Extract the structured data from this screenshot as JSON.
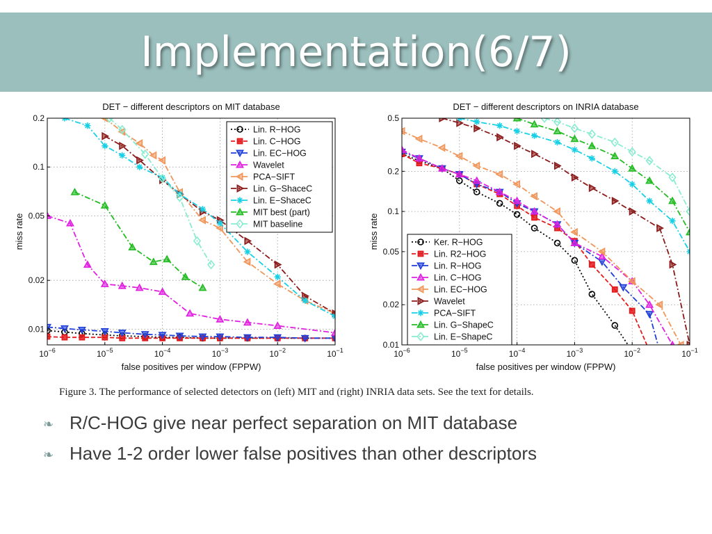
{
  "title": "Implementation(6/7)",
  "caption": "Figure 3. The performance of selected detectors on (left) MIT and (right) INRIA data sets. See the text for details.",
  "bullets": [
    "R/C-HOG give near perfect separation on MIT database",
    "Have 1-2 order lower false positives than other descriptors"
  ],
  "bullet_icon": "curl-bullet-icon",
  "colors": {
    "title_bar": "#9bbfbd",
    "title_text": "#ffffff",
    "bullet_text": "#3b3b3b"
  },
  "chart_data": [
    {
      "type": "line",
      "title": "DET − different descriptors on MIT database",
      "xlabel": "false positives per window (FPPW)",
      "ylabel": "miss rate",
      "xscale": "log",
      "yscale": "log",
      "xlim": [
        1e-06,
        0.1
      ],
      "ylim": [
        0.008,
        0.2
      ],
      "xticks": [
        1e-06,
        1e-05,
        0.0001,
        0.001,
        0.01,
        0.1
      ],
      "xtick_labels": [
        [
          "10",
          "−6"
        ],
        [
          "10",
          "−5"
        ],
        [
          "10",
          "−4"
        ],
        [
          "10",
          "−3"
        ],
        [
          "10",
          "−2"
        ],
        [
          "10",
          "−1"
        ]
      ],
      "yticks": [
        0.01,
        0.02,
        0.05,
        0.1,
        0.2
      ],
      "ytick_labels": [
        "0.01",
        "0.02",
        "0.05",
        "0.1",
        "0.2"
      ],
      "grid": true,
      "legend_position": "top-right",
      "series": [
        {
          "name": "Lin. R−HOG",
          "color": "#000000",
          "marker": "circle",
          "dash": "2,3",
          "x": [
            1e-06,
            2e-06,
            4e-06,
            1e-05,
            2e-05,
            5e-05,
            0.0001,
            0.0002,
            0.0005,
            0.001,
            0.003,
            0.01,
            0.03,
            0.1
          ],
          "y": [
            0.0098,
            0.0096,
            0.0094,
            0.0092,
            0.0091,
            0.009,
            0.0089,
            0.0089,
            0.0088,
            0.0088,
            0.0088,
            0.0088,
            0.0088,
            0.0088
          ]
        },
        {
          "name": "Lin. C−HOG",
          "color": "#e41a1c",
          "marker": "square",
          "dash": "6,3",
          "x": [
            1e-06,
            2e-06,
            4e-06,
            1e-05,
            2e-05,
            5e-05,
            0.0001,
            0.0002,
            0.0005,
            0.001,
            0.003,
            0.01,
            0.03,
            0.1
          ],
          "y": [
            0.009,
            0.0089,
            0.0089,
            0.0089,
            0.0088,
            0.0088,
            0.0088,
            0.0088,
            0.0088,
            0.0088,
            0.0088,
            0.0088,
            0.0088,
            0.0088
          ]
        },
        {
          "name": "Lin. EC−HOG",
          "color": "#1f3fd8",
          "marker": "tri-down",
          "dash": "8,3,2,3",
          "x": [
            1e-06,
            2e-06,
            4e-06,
            1e-05,
            2e-05,
            5e-05,
            0.0001,
            0.0002,
            0.0005,
            0.001,
            0.003,
            0.01,
            0.03,
            0.1
          ],
          "y": [
            0.0103,
            0.0101,
            0.0099,
            0.0097,
            0.0095,
            0.0093,
            0.0092,
            0.0091,
            0.009,
            0.009,
            0.0089,
            0.0089,
            0.0088,
            0.0088
          ]
        },
        {
          "name": "Wavelet",
          "color": "#e020e0",
          "marker": "tri-up",
          "dash": "8,3,2,3",
          "x": [
            1e-06,
            2.5e-06,
            5e-06,
            1e-05,
            2e-05,
            4e-05,
            0.0001,
            0.0003,
            0.001,
            0.003,
            0.01,
            0.1
          ],
          "y": [
            0.05,
            0.045,
            0.025,
            0.019,
            0.0185,
            0.018,
            0.017,
            0.0125,
            0.0115,
            0.011,
            0.0105,
            0.0095
          ]
        },
        {
          "name": "PCA−SIFT",
          "color": "#f0965a",
          "marker": "tri-left",
          "dash": "8,3,2,3",
          "x": [
            1e-05,
            2e-05,
            4e-05,
            7e-05,
            0.0001,
            0.0002,
            0.0005,
            0.001,
            0.003,
            0.01,
            0.03,
            0.1
          ],
          "y": [
            0.2,
            0.165,
            0.14,
            0.118,
            0.11,
            0.07,
            0.047,
            0.042,
            0.026,
            0.019,
            0.015,
            0.0125
          ]
        },
        {
          "name": "Lin. G−ShaceC",
          "color": "#8b1a1a",
          "marker": "tri-right",
          "dash": "8,3,2,3",
          "x": [
            1e-05,
            2e-05,
            4e-05,
            0.0001,
            0.0002,
            0.0005,
            0.001,
            0.003,
            0.01,
            0.03,
            0.1
          ],
          "y": [
            0.155,
            0.135,
            0.11,
            0.083,
            0.068,
            0.053,
            0.047,
            0.035,
            0.025,
            0.016,
            0.0125
          ]
        },
        {
          "name": "Lin. E−ShaceC",
          "color": "#17d0e6",
          "marker": "star",
          "dash": "8,3,2,3",
          "x": [
            2e-06,
            5e-06,
            1e-05,
            2e-05,
            4e-05,
            0.0001,
            0.0002,
            0.0005,
            0.001,
            0.003,
            0.01,
            0.03,
            0.1
          ],
          "y": [
            0.2,
            0.18,
            0.135,
            0.118,
            0.1,
            0.086,
            0.068,
            0.055,
            0.045,
            0.03,
            0.021,
            0.015,
            0.012
          ]
        },
        {
          "name": "MIT best (part)",
          "color": "#22bb22",
          "marker": "tri-up",
          "dash": "8,3,2,3",
          "x": [
            3e-06,
            1e-05,
            3e-05,
            7e-05,
            0.00012,
            0.00025,
            0.0005
          ],
          "y": [
            0.07,
            0.058,
            0.032,
            0.026,
            0.027,
            0.021,
            0.018
          ]
        },
        {
          "name": "MIT baseline",
          "color": "#88ecd0",
          "marker": "diamond",
          "dash": "8,3,2,3",
          "x": [
            1.2e-05,
            2e-05,
            5e-05,
            0.0001,
            0.0002,
            0.0004,
            0.0007
          ],
          "y": [
            0.2,
            0.17,
            0.12,
            0.085,
            0.065,
            0.035,
            0.025
          ]
        }
      ]
    },
    {
      "type": "line",
      "title": "DET − different descriptors on INRIA database",
      "xlabel": "false positives per window (FPPW)",
      "ylabel": "miss rate",
      "xscale": "log",
      "yscale": "log",
      "xlim": [
        1e-06,
        0.1
      ],
      "ylim": [
        0.01,
        0.5
      ],
      "xticks": [
        1e-06,
        1e-05,
        0.0001,
        0.001,
        0.01,
        0.1
      ],
      "xtick_labels": [
        [
          "10",
          "−6"
        ],
        [
          "10",
          "−5"
        ],
        [
          "10",
          "−4"
        ],
        [
          "10",
          "−3"
        ],
        [
          "10",
          "−2"
        ],
        [
          "10",
          "−1"
        ]
      ],
      "yticks": [
        0.01,
        0.02,
        0.05,
        0.1,
        0.2,
        0.5
      ],
      "ytick_labels": [
        "0.01",
        "0.02",
        "0.05",
        "0.1",
        "0.2",
        "0.5"
      ],
      "grid": true,
      "legend_position": "bottom-left",
      "series": [
        {
          "name": "Ker. R−HOG",
          "color": "#000000",
          "marker": "circle",
          "dash": "2,3",
          "x": [
            1e-06,
            2e-06,
            5e-06,
            1e-05,
            2e-05,
            5e-05,
            0.0001,
            0.0002,
            0.0005,
            0.001,
            0.002,
            0.005,
            0.01
          ],
          "y": [
            0.27,
            0.24,
            0.21,
            0.17,
            0.14,
            0.115,
            0.095,
            0.075,
            0.058,
            0.043,
            0.024,
            0.014,
            0.009
          ]
        },
        {
          "name": "Lin. R2−HOG",
          "color": "#e41a1c",
          "marker": "square",
          "dash": "6,3",
          "x": [
            1e-06,
            2e-06,
            5e-06,
            1e-05,
            2e-05,
            5e-05,
            0.0001,
            0.0002,
            0.0005,
            0.001,
            0.002,
            0.005,
            0.01,
            0.02
          ],
          "y": [
            0.27,
            0.23,
            0.21,
            0.19,
            0.16,
            0.135,
            0.11,
            0.09,
            0.075,
            0.06,
            0.04,
            0.026,
            0.018,
            0.009
          ]
        },
        {
          "name": "Lin. R−HOG",
          "color": "#1f3fd8",
          "marker": "tri-down",
          "dash": "8,3,2,3",
          "x": [
            1e-06,
            2e-06,
            5e-06,
            1e-05,
            2e-05,
            5e-05,
            0.0001,
            0.0002,
            0.0005,
            0.001,
            0.003,
            0.007,
            0.02,
            0.03
          ],
          "y": [
            0.28,
            0.25,
            0.21,
            0.19,
            0.16,
            0.14,
            0.115,
            0.1,
            0.08,
            0.058,
            0.042,
            0.027,
            0.017,
            0.009
          ]
        },
        {
          "name": "Lin. C−HOG",
          "color": "#e020e0",
          "marker": "tri-up",
          "dash": "8,3,2,3",
          "x": [
            1e-06,
            2e-06,
            5e-06,
            1e-05,
            2e-05,
            5e-05,
            0.0001,
            0.0002,
            0.0005,
            0.001,
            0.003,
            0.01,
            0.02,
            0.05
          ],
          "y": [
            0.29,
            0.25,
            0.21,
            0.19,
            0.17,
            0.14,
            0.12,
            0.1,
            0.08,
            0.058,
            0.046,
            0.03,
            0.02,
            0.01
          ]
        },
        {
          "name": "Lin. EC−HOG",
          "color": "#f0965a",
          "marker": "tri-left",
          "dash": "8,3,2,3",
          "x": [
            1e-06,
            2e-06,
            5e-06,
            1e-05,
            2e-05,
            5e-05,
            0.0001,
            0.0002,
            0.0005,
            0.001,
            0.003,
            0.01,
            0.03,
            0.07
          ],
          "y": [
            0.4,
            0.35,
            0.3,
            0.26,
            0.22,
            0.19,
            0.16,
            0.13,
            0.1,
            0.07,
            0.05,
            0.03,
            0.02,
            0.01
          ]
        },
        {
          "name": "Wavelet",
          "color": "#8b1a1a",
          "marker": "tri-right",
          "dash": "8,3,2,3",
          "x": [
            5e-06,
            1e-05,
            2e-05,
            5e-05,
            0.0001,
            0.0002,
            0.0005,
            0.001,
            0.002,
            0.005,
            0.01,
            0.03,
            0.05,
            0.1
          ],
          "y": [
            0.5,
            0.46,
            0.42,
            0.36,
            0.31,
            0.27,
            0.22,
            0.18,
            0.15,
            0.12,
            0.1,
            0.075,
            0.04,
            0.01
          ]
        },
        {
          "name": "PCA−SIFT",
          "color": "#17d0e6",
          "marker": "star",
          "dash": "8,3,2,3",
          "x": [
            1e-05,
            2e-05,
            5e-05,
            0.0001,
            0.0002,
            0.0005,
            0.001,
            0.002,
            0.005,
            0.01,
            0.02,
            0.05,
            0.1
          ],
          "y": [
            0.5,
            0.47,
            0.44,
            0.4,
            0.37,
            0.33,
            0.29,
            0.25,
            0.2,
            0.16,
            0.12,
            0.085,
            0.05
          ]
        },
        {
          "name": "Lin. G−ShapeC",
          "color": "#22bb22",
          "marker": "tri-up",
          "dash": "8,3,2,3",
          "x": [
            0.0001,
            0.0002,
            0.0005,
            0.001,
            0.002,
            0.005,
            0.01,
            0.02,
            0.05,
            0.1
          ],
          "y": [
            0.5,
            0.45,
            0.4,
            0.35,
            0.31,
            0.26,
            0.21,
            0.17,
            0.12,
            0.07
          ]
        },
        {
          "name": "Lin. E−ShapeC",
          "color": "#88ecd0",
          "marker": "diamond",
          "dash": "8,3,2,3",
          "x": [
            0.0003,
            0.0005,
            0.001,
            0.002,
            0.005,
            0.01,
            0.02,
            0.05,
            0.1
          ],
          "y": [
            0.5,
            0.47,
            0.42,
            0.38,
            0.33,
            0.28,
            0.24,
            0.18,
            0.1
          ]
        }
      ]
    }
  ]
}
